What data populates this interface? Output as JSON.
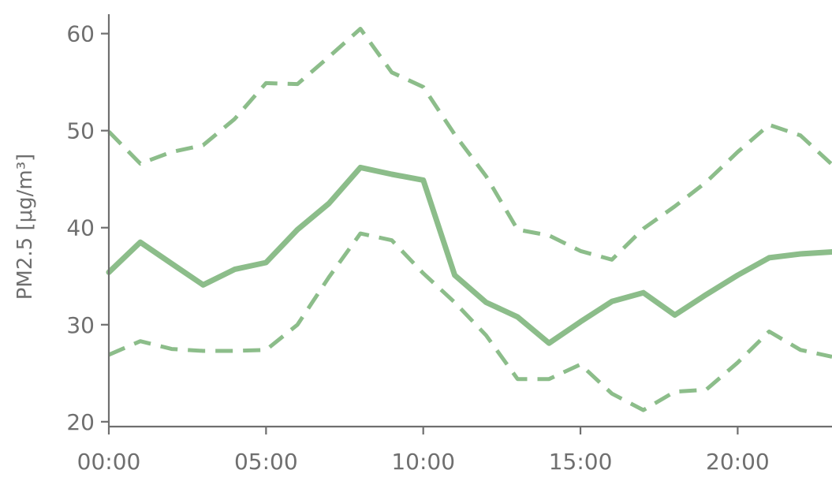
{
  "chart_data": {
    "type": "line",
    "x": [
      "00:00",
      "01:00",
      "02:00",
      "03:00",
      "04:00",
      "05:00",
      "06:00",
      "07:00",
      "08:00",
      "09:00",
      "10:00",
      "11:00",
      "12:00",
      "13:00",
      "14:00",
      "15:00",
      "16:00",
      "17:00",
      "18:00",
      "19:00",
      "20:00",
      "21:00",
      "22:00",
      "23:00"
    ],
    "series": [
      {
        "style": "solid",
        "color": "#8cbd8a",
        "values": [
          35.4,
          38.5,
          36.3,
          34.1,
          35.7,
          36.4,
          39.8,
          42.5,
          46.2,
          45.5,
          44.9,
          35.1,
          32.3,
          30.8,
          28.1,
          30.3,
          32.4,
          33.3,
          31.0,
          33.1,
          35.1,
          36.9,
          37.3,
          37.5
        ]
      },
      {
        "style": "dashed",
        "color": "#8cbd8a",
        "values": [
          49.9,
          46.6,
          47.8,
          48.5,
          51.2,
          54.9,
          54.8,
          57.6,
          60.5,
          56.0,
          54.5,
          49.6,
          45.3,
          39.8,
          39.2,
          37.6,
          36.7,
          39.9,
          42.2,
          44.7,
          47.8,
          50.6,
          49.5,
          46.5
        ]
      },
      {
        "style": "dashed",
        "color": "#8cbd8a",
        "values": [
          26.9,
          28.3,
          27.5,
          27.3,
          27.3,
          27.4,
          30.0,
          34.9,
          39.4,
          38.7,
          35.3,
          32.3,
          28.9,
          24.4,
          24.4,
          25.9,
          22.9,
          21.2,
          23.1,
          23.3,
          26.1,
          29.3,
          27.4,
          26.7
        ]
      }
    ],
    "xticks": [
      "00:00",
      "05:00",
      "10:00",
      "15:00",
      "20:00"
    ],
    "xtick_index": [
      0,
      5,
      10,
      15,
      20
    ],
    "yticks": [
      20,
      30,
      40,
      50,
      60
    ],
    "ylabel": "PM2.5 [μg/m³]",
    "xlim": [
      0,
      23
    ],
    "ylim": [
      19.5,
      62
    ],
    "grid": false
  }
}
